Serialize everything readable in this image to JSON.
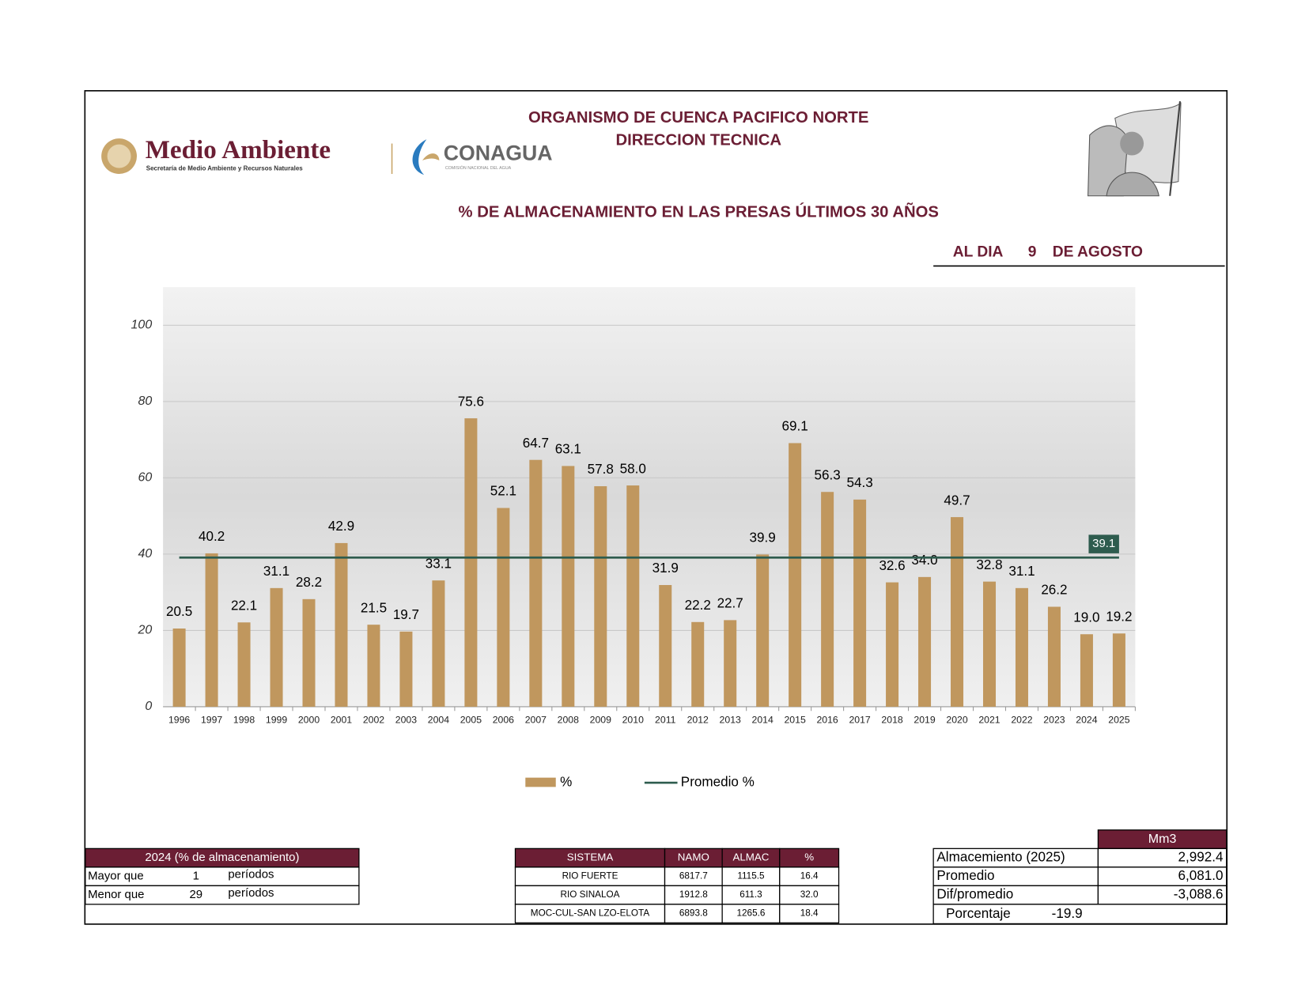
{
  "header": {
    "logo_main": "Medio Ambiente",
    "logo_sub": "Secretaría de Medio Ambiente y Recursos Naturales",
    "logo2": "CONAGUA",
    "logo2_sub": "COMISIÓN NACIONAL DEL AGUA",
    "org": "ORGANISMO DE CUENCA PACIFICO NORTE",
    "dept": "DIRECCION TECNICA",
    "date_label": "AL DIA",
    "date_day": "9",
    "date_month": "DE AGOSTO"
  },
  "chart_data": {
    "type": "bar",
    "title": "% DE ALMACENAMIENTO EN LAS PRESAS ÚLTIMOS 30 AÑOS",
    "categories": [
      "1996",
      "1997",
      "1998",
      "1999",
      "2000",
      "2001",
      "2002",
      "2003",
      "2004",
      "2005",
      "2006",
      "2007",
      "2008",
      "2009",
      "2010",
      "2011",
      "2012",
      "2013",
      "2014",
      "2015",
      "2016",
      "2017",
      "2018",
      "2019",
      "2020",
      "2021",
      "2022",
      "2023",
      "2024",
      "2025"
    ],
    "series": [
      {
        "name": "%",
        "color": "#c0975e",
        "values": [
          20.5,
          40.2,
          22.1,
          31.1,
          28.2,
          42.9,
          21.5,
          19.7,
          33.1,
          75.6,
          52.1,
          64.7,
          63.1,
          57.8,
          58.0,
          31.9,
          22.2,
          22.7,
          39.9,
          69.1,
          56.3,
          54.3,
          32.6,
          34.0,
          49.7,
          32.8,
          31.1,
          26.2,
          19.0,
          19.2
        ],
        "value_labels": [
          "20.5",
          "40.2",
          "22.1",
          "31.1",
          "28.2",
          "42.9",
          "21.5",
          "19.7",
          "33.1",
          "75.6",
          "52.1",
          "64.7",
          "63.1",
          "57.8",
          "58.0",
          "31.9",
          "22.2",
          "22.7",
          "39.9",
          "69.1",
          "56.3",
          "54.3",
          "32.6",
          "34.0",
          "49.7",
          "32.8",
          "31.1",
          "26.2",
          "19.0",
          "19.2"
        ]
      }
    ],
    "reference_line": {
      "name": "Promedio %",
      "value": 39.1,
      "color": "#2e5c4e"
    },
    "ylim": [
      0,
      110
    ],
    "yticks": [
      0,
      20,
      40,
      60,
      80,
      100
    ],
    "grid": true
  },
  "tables": {
    "storage_2024": {
      "title": "2024 (% de almacenamiento)",
      "rows": [
        [
          "Mayor que",
          "1",
          "períodos"
        ],
        [
          "Menor que",
          "29",
          "períodos"
        ]
      ]
    },
    "systems": {
      "headers": [
        "SISTEMA",
        "NAMO",
        "ALMAC",
        "%"
      ],
      "rows": [
        [
          "RIO FUERTE",
          "6817.7",
          "1115.5",
          "16.4"
        ],
        [
          "RIO SINALOA",
          "1912.8",
          "611.3",
          "32.0"
        ],
        [
          "MOC-CUL-SAN LZO-ELOTA",
          "6893.8",
          "1265.6",
          "18.4"
        ]
      ]
    },
    "volumes": {
      "unit": "Mm3",
      "rows": [
        [
          "Almacemiento (2025)",
          "2,992.4"
        ],
        [
          "Promedio",
          "6,081.0"
        ],
        [
          "Dif/promedio",
          "-3,088.6"
        ]
      ],
      "footer": [
        "Porcentaje",
        "-19.9"
      ]
    }
  }
}
